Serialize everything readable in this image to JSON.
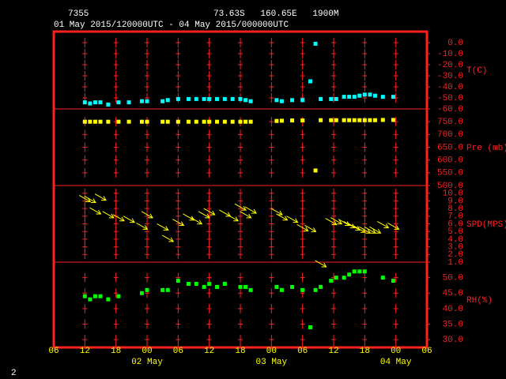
{
  "header": {
    "station": "7355",
    "location": "73.63S   160.65E   1900M",
    "period": "01 May 2015/120000UTC - 04 May 2015/000000UTC"
  },
  "footer": "2",
  "x_axis": {
    "xlim": [
      6,
      78
    ],
    "xticks": [
      {
        "value": 6,
        "label": "06"
      },
      {
        "value": 12,
        "label": "12"
      },
      {
        "value": 18,
        "label": "18"
      },
      {
        "value": 24,
        "label": "00"
      },
      {
        "value": 30,
        "label": "06"
      },
      {
        "value": 36,
        "label": "12"
      },
      {
        "value": 42,
        "label": "18"
      },
      {
        "value": 48,
        "label": "00"
      },
      {
        "value": 54,
        "label": "06"
      },
      {
        "value": 60,
        "label": "12"
      },
      {
        "value": 66,
        "label": "18"
      },
      {
        "value": 72,
        "label": "00"
      },
      {
        "value": 78,
        "label": "06"
      }
    ],
    "day_labels": [
      {
        "value": 24,
        "label": "02 May"
      },
      {
        "value": 48,
        "label": "03 May"
      },
      {
        "value": 72,
        "label": "04 May"
      }
    ],
    "x": [
      12,
      13,
      14,
      15,
      16.5,
      18.5,
      20.5,
      23,
      24,
      27,
      28,
      30,
      32,
      33.5,
      35,
      36,
      37.5,
      39,
      40.5,
      42,
      43,
      44,
      49,
      50,
      52,
      54,
      55.5,
      56.5,
      57.5,
      59.5,
      60.5,
      62,
      63,
      64,
      65,
      66,
      67,
      68,
      69.5,
      71.5
    ]
  },
  "chart_data": [
    {
      "type": "scatter",
      "label": "T(C)",
      "color": "#00ffff",
      "ylim": [
        -60,
        10
      ],
      "yticks": [
        {
          "value": 0,
          "label": "0.0"
        },
        {
          "value": -10,
          "label": "-10.0"
        },
        {
          "value": -20,
          "label": "-20.0"
        },
        {
          "value": -30,
          "label": "-30.0"
        },
        {
          "value": -40,
          "label": "-40.0"
        },
        {
          "value": -50,
          "label": "-50.0"
        },
        {
          "value": -60,
          "label": "-60.0"
        }
      ],
      "values": [
        -54,
        -55,
        -54,
        -54,
        -56,
        -54,
        -54,
        -53,
        -53,
        -53,
        -52,
        -51,
        -51,
        -51,
        -51,
        -51,
        -51,
        -51,
        -51,
        -51,
        -52,
        -53,
        -52,
        -53,
        -52,
        -52,
        -35,
        -1,
        -51,
        -51,
        -51,
        -49,
        -49,
        -49,
        -48,
        -47,
        -47,
        -48,
        -49,
        -49
      ]
    },
    {
      "type": "scatter",
      "label": "Pre (mb)",
      "color": "#ffff00",
      "ylim": [
        500,
        800
      ],
      "yticks": [
        {
          "value": 750,
          "label": "750.0"
        },
        {
          "value": 700,
          "label": "700.0"
        },
        {
          "value": 650,
          "label": "650.0"
        },
        {
          "value": 600,
          "label": "600.0"
        },
        {
          "value": 550,
          "label": "550.0"
        },
        {
          "value": 500,
          "label": "500.0"
        }
      ],
      "values": [
        750,
        750,
        750,
        750,
        750,
        750,
        750,
        750,
        750,
        750,
        750,
        750,
        750,
        750,
        750,
        750,
        750,
        750,
        750,
        750,
        750,
        750,
        753,
        754,
        755,
        755,
        null,
        559,
        756,
        756,
        756,
        756,
        756,
        756,
        756,
        756,
        756,
        756,
        757,
        757
      ]
    },
    {
      "type": "vector",
      "label": "SPD(MPS)",
      "color": "#ffff00",
      "ylim": [
        1,
        11
      ],
      "yticks": [
        {
          "value": 10,
          "label": "10.0"
        },
        {
          "value": 9,
          "label": "9.0"
        },
        {
          "value": 8,
          "label": "8.0"
        },
        {
          "value": 7,
          "label": "7.0"
        },
        {
          "value": 6,
          "label": "6.0"
        },
        {
          "value": 5,
          "label": "5.0"
        },
        {
          "value": 4,
          "label": "4.0"
        },
        {
          "value": 3,
          "label": "3.0"
        },
        {
          "value": 2,
          "label": "2.0"
        },
        {
          "value": 1,
          "label": "1.0"
        }
      ],
      "values": [
        9.3,
        9.2,
        7.7,
        9.5,
        7.2,
        6.8,
        6.6,
        5.7,
        7.2,
        5.6,
        4.1,
        6.2,
        6.9,
        6.4,
        7.2,
        7.6,
        null,
        7.4,
        6.8,
        8.2,
        7.2,
        7.8,
        7.6,
        6.9,
        6.6,
        5.5,
        5.4,
        null,
        0.8,
        6.3,
        6.4,
        6.2,
        5.9,
        5.6,
        5.3,
        5.2,
        5.2,
        5.2,
        5.9,
        5.7
      ]
    },
    {
      "type": "scatter",
      "label": "RH(%)",
      "color": "#00ff00",
      "ylim": [
        27.5,
        55
      ],
      "yticks": [
        {
          "value": 50,
          "label": "50.0"
        },
        {
          "value": 45,
          "label": "45.0"
        },
        {
          "value": 40,
          "label": "40.0"
        },
        {
          "value": 35,
          "label": "35.0"
        },
        {
          "value": 30,
          "label": "30.0"
        }
      ],
      "values": [
        44,
        43,
        44,
        44,
        43,
        44,
        null,
        45,
        46,
        46,
        46,
        49,
        48,
        48,
        47,
        48,
        47,
        48,
        null,
        47,
        47,
        46,
        47,
        46,
        47,
        46,
        34,
        46,
        47,
        49,
        50,
        50,
        51,
        52,
        52,
        52,
        null,
        null,
        50,
        49
      ]
    }
  ]
}
